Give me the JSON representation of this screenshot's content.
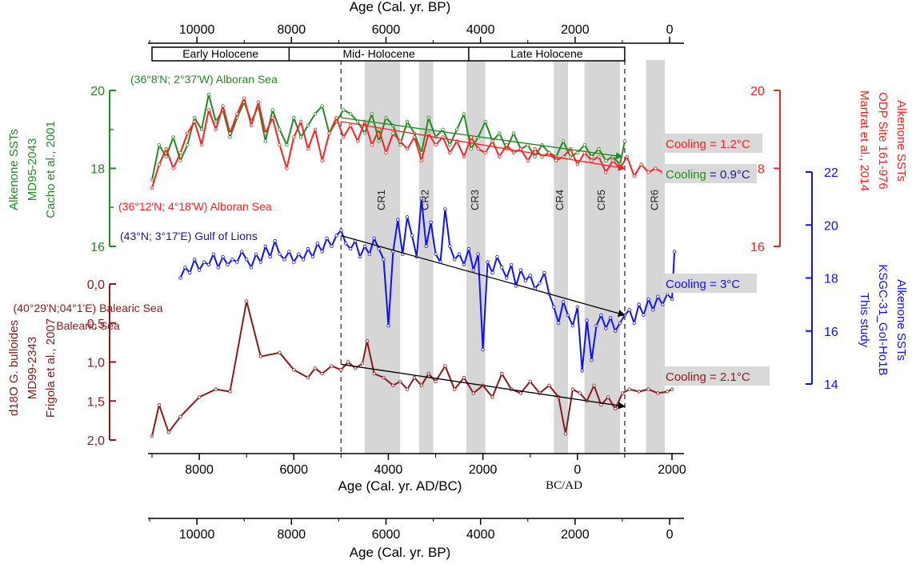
{
  "chart_data": {
    "type": "line",
    "x_label_bottom": "Age (Cal. yr. AD/BC)",
    "x_label_top": "Age (Cal. yr. BP)",
    "x_label_bp_bottom": "Age (Cal. yr. BP)",
    "bc_ad_label": "BC/AD",
    "x_range_ad": [
      -9000,
      2000
    ],
    "x_ticks_ad": [
      "8000",
      "6000",
      "4000",
      "2000",
      "0",
      "2000"
    ],
    "x_ticks_bp": [
      "10000",
      "8000",
      "6000",
      "4000",
      "2000",
      "0"
    ],
    "periods": [
      {
        "name": "Early Holocene"
      },
      {
        "name": "Mid- Holocene"
      },
      {
        "name": "Late Holocene"
      }
    ],
    "dashed_lines_ad": [
      -5000,
      1000
    ],
    "cold_events": [
      {
        "label": "CR1",
        "from": -4500,
        "to": -3750
      },
      {
        "label": "CR2",
        "from": -3350,
        "to": -3050
      },
      {
        "label": "CR3",
        "from": -2350,
        "to": -1950
      },
      {
        "label": "CR4",
        "from": -500,
        "to": -200
      },
      {
        "label": "CR5",
        "from": 150,
        "to": 900
      },
      {
        "label": "CR6",
        "from": 1450,
        "to": 1850
      }
    ],
    "axes": {
      "green": {
        "title": "Alkenone SSTs MD95-2043 Cacho et al., 2001",
        "lines": [
          "Alkenone SSTs",
          "MD95-2043",
          "Cacho et al., 2001"
        ],
        "ticks": [
          "20",
          "18",
          "16"
        ],
        "range": [
          16,
          20
        ],
        "color": "#228b22"
      },
      "red": {
        "lines": [
          "Alkenone SSTs",
          "ODP Site 161-976",
          "Martrat et al., 2014"
        ],
        "ticks": [
          "20",
          "18",
          "16"
        ],
        "range": [
          16,
          20
        ],
        "color": "#ff2020"
      },
      "blue": {
        "lines": [
          "Alkenone SSTs",
          "KSGC-31_GoI-Ho1B",
          "This study"
        ],
        "ticks": [
          "22",
          "20",
          "18",
          "16",
          "14"
        ],
        "range": [
          14,
          22
        ],
        "color": "#1010ff"
      },
      "brown": {
        "lines": [
          "d18O G. bulloides",
          "MD99-2343",
          "Frigola et al., 2007"
        ],
        "ticks": [
          "0,0",
          "0,5",
          "1,0",
          "1,5",
          "2,0"
        ],
        "range": [
          0,
          2
        ],
        "color": "#8b1a1a"
      }
    },
    "series": [
      {
        "name": "Alboran Sea (Cacho et al., 2001)",
        "location": "(36°8'N; 2°37'W) Alboran Sea",
        "axis": "green",
        "color": "#228b22",
        "x": [
          -9000,
          -8850,
          -8700,
          -8550,
          -8400,
          -8250,
          -8100,
          -7950,
          -7800,
          -7650,
          -7500,
          -7350,
          -7200,
          -7050,
          -6900,
          -6750,
          -6600,
          -6450,
          -6300,
          -6150,
          -6000,
          -5850,
          -5700,
          -5550,
          -5400,
          -5250,
          -5100,
          -4950,
          -4800,
          -4650,
          -4500,
          -4350,
          -4200,
          -4050,
          -3900,
          -3750,
          -3600,
          -3450,
          -3300,
          -3150,
          -3000,
          -2850,
          -2700,
          -2550,
          -2400,
          -2250,
          -2100,
          -1950,
          -1800,
          -1650,
          -1500,
          -1350,
          -1200,
          -1050,
          -900,
          -750,
          -600,
          -450,
          -300,
          -150,
          0,
          150,
          300,
          450,
          600,
          750,
          900,
          1000
        ],
        "values": [
          17.7,
          18.6,
          18.3,
          18.8,
          18.2,
          18.6,
          19.3,
          19.0,
          19.9,
          19.2,
          19.5,
          18.8,
          19.3,
          19.7,
          19.2,
          19.6,
          18.7,
          19.5,
          19.0,
          18.6,
          19.3,
          18.8,
          19.1,
          19.4,
          19.6,
          18.9,
          19.2,
          19.5,
          19.4,
          19.2,
          18.9,
          19.4,
          18.7,
          19.3,
          19.1,
          18.6,
          19.2,
          18.9,
          18.4,
          19.3,
          18.8,
          19.0,
          18.6,
          19.0,
          19.4,
          18.5,
          18.8,
          19.2,
          18.7,
          18.9,
          18.5,
          18.9,
          18.5,
          18.6,
          18.3,
          18.6,
          18.4,
          18.3,
          18.7,
          18.3,
          18.4,
          18.6,
          18.3,
          18.5,
          18.2,
          18.3,
          18.1,
          18.7
        ]
      },
      {
        "name": "Alboran Sea (Martrat et al., 2014)",
        "location": "(36°12'N; 4°18'W) Alboran Sea",
        "axis": "red",
        "color": "#ff2020",
        "x": [
          -9000,
          -8850,
          -8700,
          -8550,
          -8400,
          -8250,
          -8100,
          -7950,
          -7800,
          -7650,
          -7500,
          -7350,
          -7200,
          -7050,
          -6900,
          -6750,
          -6600,
          -6450,
          -6300,
          -6150,
          -6000,
          -5850,
          -5700,
          -5550,
          -5400,
          -5250,
          -5100,
          -4950,
          -4800,
          -4650,
          -4500,
          -4350,
          -4200,
          -4050,
          -3900,
          -3750,
          -3600,
          -3450,
          -3300,
          -3150,
          -3000,
          -2850,
          -2700,
          -2550,
          -2400,
          -2250,
          -2100,
          -1950,
          -1800,
          -1650,
          -1500,
          -1350,
          -1200,
          -1050,
          -900,
          -750,
          -600,
          -450,
          -300,
          -150,
          0,
          150,
          300,
          450,
          600,
          750,
          900,
          1050,
          1200,
          1350,
          1500,
          1650,
          1800,
          1900
        ],
        "values": [
          17.5,
          18.1,
          18.5,
          18.0,
          18.4,
          18.9,
          19.2,
          18.6,
          19.5,
          19.0,
          19.6,
          18.9,
          19.4,
          19.8,
          19.1,
          19.7,
          18.9,
          19.3,
          18.6,
          18.0,
          18.8,
          19.2,
          18.5,
          19.0,
          18.2,
          18.9,
          19.3,
          18.8,
          19.1,
          18.7,
          19.2,
          18.6,
          19.0,
          18.4,
          18.9,
          18.7,
          18.5,
          18.8,
          18.2,
          18.9,
          18.6,
          18.8,
          18.4,
          18.7,
          18.3,
          18.8,
          18.5,
          18.4,
          18.7,
          18.3,
          18.6,
          18.4,
          18.5,
          18.2,
          18.5,
          18.3,
          18.4,
          18.2,
          18.3,
          18.5,
          18.1,
          18.4,
          18.2,
          18.3,
          17.9,
          18.2,
          18.0,
          18.3,
          17.8,
          18.1,
          17.9,
          18.0,
          17.9,
          18.0
        ]
      },
      {
        "name": "Gulf of Lions (This study)",
        "location": "(43°N; 3°17'E) Gulf of Lions",
        "axis": "blue",
        "color": "#1010ff",
        "x": [
          -8400,
          -8300,
          -8200,
          -8100,
          -8000,
          -7900,
          -7800,
          -7700,
          -7600,
          -7500,
          -7400,
          -7300,
          -7200,
          -7100,
          -7000,
          -6900,
          -6800,
          -6700,
          -6600,
          -6500,
          -6400,
          -6300,
          -6200,
          -6100,
          -6000,
          -5900,
          -5800,
          -5700,
          -5600,
          -5500,
          -5400,
          -5300,
          -5200,
          -5100,
          -5000,
          -4900,
          -4800,
          -4700,
          -4600,
          -4500,
          -4400,
          -4300,
          -4200,
          -4100,
          -4000,
          -3900,
          -3800,
          -3700,
          -3600,
          -3500,
          -3400,
          -3300,
          -3200,
          -3100,
          -3000,
          -2900,
          -2800,
          -2700,
          -2600,
          -2500,
          -2400,
          -2300,
          -2200,
          -2100,
          -2000,
          -1900,
          -1800,
          -1700,
          -1600,
          -1500,
          -1400,
          -1300,
          -1200,
          -1100,
          -1000,
          -900,
          -800,
          -700,
          -600,
          -500,
          -400,
          -300,
          -200,
          -100,
          0,
          100,
          200,
          300,
          400,
          500,
          600,
          700,
          800,
          900,
          1000,
          1100,
          1200,
          1300,
          1400,
          1500,
          1600,
          1700,
          1800,
          1900,
          2000,
          2050
        ],
        "values": [
          18.0,
          18.4,
          18.2,
          18.7,
          18.3,
          18.6,
          18.5,
          18.9,
          18.4,
          18.8,
          18.5,
          18.7,
          18.6,
          19.0,
          18.7,
          18.4,
          18.9,
          18.6,
          19.2,
          18.8,
          19.4,
          18.9,
          18.7,
          19.0,
          18.6,
          18.9,
          18.7,
          19.1,
          18.8,
          19.3,
          19.0,
          19.5,
          19.2,
          19.6,
          19.8,
          19.3,
          19.1,
          19.4,
          18.8,
          19.2,
          18.9,
          19.5,
          19.1,
          18.7,
          16.2,
          19.0,
          20.2,
          18.9,
          20.3,
          19.6,
          18.8,
          21.0,
          19.2,
          20.1,
          18.9,
          18.6,
          20.6,
          19.2,
          18.7,
          18.9,
          18.5,
          19.1,
          18.3,
          18.9,
          15.3,
          18.6,
          18.2,
          18.8,
          18.4,
          18.0,
          18.5,
          17.7,
          18.3,
          17.9,
          18.1,
          17.6,
          17.8,
          18.2,
          17.4,
          16.9,
          16.3,
          17.1,
          16.6,
          16.2,
          16.9,
          14.5,
          16.4,
          14.9,
          16.2,
          16.6,
          16.1,
          16.5,
          16.0,
          16.3,
          16.6,
          16.8,
          16.3,
          17.0,
          16.6,
          17.2,
          16.8,
          17.3,
          17.0,
          17.4,
          17.2,
          19.0
        ]
      },
      {
        "name": "Balearic Sea (Frigola et al., 2007)",
        "location": "(40°29'N;04°1'E) Balearic Sea",
        "axis": "brown",
        "color": "#8b1a1a",
        "x": [
          -9000,
          -8850,
          -8650,
          -8400,
          -8000,
          -7650,
          -7350,
          -7000,
          -6700,
          -6300,
          -6000,
          -5700,
          -5550,
          -5400,
          -5200,
          -5000,
          -4850,
          -4700,
          -4550,
          -4450,
          -4300,
          -4100,
          -3900,
          -3750,
          -3600,
          -3450,
          -3300,
          -3150,
          -3000,
          -2800,
          -2600,
          -2400,
          -2200,
          -2000,
          -1800,
          -1600,
          -1400,
          -1200,
          -1000,
          -800,
          -600,
          -400,
          -250,
          -100,
          50,
          200,
          350,
          500,
          650,
          800,
          950,
          1100,
          1300,
          1500,
          1700,
          1900,
          2000
        ],
        "values": [
          1.95,
          1.55,
          1.9,
          1.7,
          1.45,
          1.35,
          1.38,
          0.22,
          0.93,
          0.88,
          1.1,
          1.2,
          1.08,
          1.15,
          1.05,
          1.1,
          1.0,
          1.08,
          1.02,
          0.73,
          1.15,
          1.2,
          1.3,
          1.25,
          1.35,
          1.2,
          1.3,
          1.15,
          1.25,
          1.05,
          1.35,
          1.2,
          1.4,
          1.3,
          1.45,
          1.15,
          1.35,
          1.4,
          1.25,
          1.4,
          1.3,
          1.45,
          1.92,
          1.35,
          1.4,
          1.5,
          1.3,
          1.55,
          1.45,
          1.6,
          1.4,
          1.35,
          1.38,
          1.35,
          1.4,
          1.38,
          1.35
        ]
      }
    ],
    "trend_arrows": [
      {
        "series": "green",
        "from": [
          -5000,
          19.3
        ],
        "to": [
          950,
          18.3
        ],
        "color": "#228b22"
      },
      {
        "series": "red",
        "from": [
          -5000,
          19.2
        ],
        "to": [
          1000,
          18.0
        ],
        "color": "#ff2020"
      },
      {
        "series": "blue",
        "from": [
          -5000,
          19.6
        ],
        "to": [
          1000,
          16.6
        ],
        "color": "#000000"
      },
      {
        "series": "brown",
        "from": [
          -5000,
          1.03
        ],
        "to": [
          1000,
          1.57
        ],
        "color": "#000000"
      }
    ],
    "cooling_labels": [
      {
        "word": "Cooling",
        "value": "= 1.2°C",
        "color": "#ff2020"
      },
      {
        "word": "Cooling",
        "value": "= 0.9°C",
        "color": "#228b22",
        "value_color": "#1a1a8c"
      },
      {
        "word": "Cooling",
        "value": "= 3°C",
        "color": "#1010ff"
      },
      {
        "word": "Cooling",
        "value": "= 2.1°C",
        "color": "#8b1a1a"
      }
    ]
  }
}
